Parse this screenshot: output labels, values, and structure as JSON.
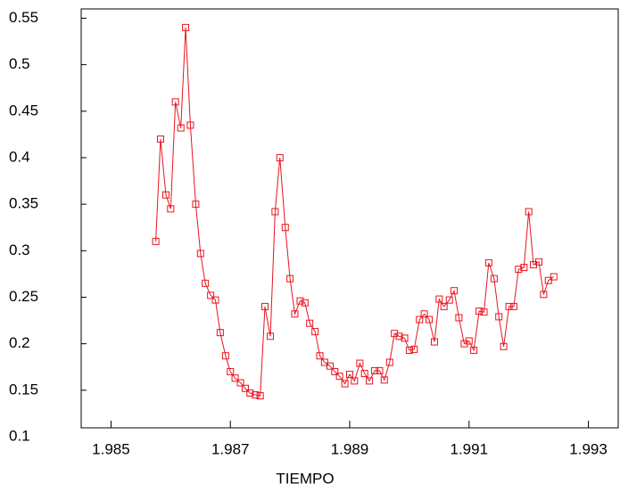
{
  "chart_data": {
    "type": "line",
    "x_label": "TIEMPO",
    "x": [
      1.98575,
      1.98583,
      1.98592,
      1.986,
      1.98608,
      1.98617,
      1.98625,
      1.98633,
      1.98642,
      1.9865,
      1.98658,
      1.98667,
      1.98675,
      1.98683,
      1.98692,
      1.987,
      1.98708,
      1.98717,
      1.98725,
      1.98733,
      1.98742,
      1.9875,
      1.98758,
      1.98767,
      1.98775,
      1.98783,
      1.98792,
      1.988,
      1.98808,
      1.98817,
      1.98825,
      1.98833,
      1.98842,
      1.9885,
      1.98858,
      1.98867,
      1.98875,
      1.98883,
      1.98892,
      1.989,
      1.98908,
      1.98917,
      1.98925,
      1.98933,
      1.98942,
      1.9895,
      1.98958,
      1.98967,
      1.98975,
      1.98983,
      1.98992,
      1.99,
      1.99008,
      1.99017,
      1.99025,
      1.99033,
      1.99042,
      1.9905,
      1.99058,
      1.99067,
      1.99075,
      1.99083,
      1.99092,
      1.991,
      1.99108,
      1.99117,
      1.99125,
      1.99133,
      1.99142,
      1.9915,
      1.99158,
      1.99167,
      1.99175,
      1.99183,
      1.99192,
      1.992,
      1.99208,
      1.99217,
      1.99225,
      1.99233,
      1.99242
    ],
    "series": [
      {
        "color": "#e8141e",
        "values": [
          0.31,
          0.42,
          0.36,
          0.345,
          0.46,
          0.432,
          0.54,
          0.435,
          0.35,
          0.297,
          0.265,
          0.252,
          0.247,
          0.212,
          0.187,
          0.17,
          0.163,
          0.158,
          0.152,
          0.147,
          0.145,
          0.144,
          0.24,
          0.208,
          0.342,
          0.4,
          0.325,
          0.27,
          0.232,
          0.246,
          0.244,
          0.222,
          0.213,
          0.187,
          0.18,
          0.176,
          0.17,
          0.165,
          0.157,
          0.167,
          0.16,
          0.179,
          0.168,
          0.16,
          0.171,
          0.171,
          0.161,
          0.18,
          0.211,
          0.208,
          0.206,
          0.193,
          0.194,
          0.226,
          0.232,
          0.226,
          0.202,
          0.248,
          0.24,
          0.247,
          0.257,
          0.228,
          0.2,
          0.203,
          0.193,
          0.235,
          0.234,
          0.287,
          0.27,
          0.229,
          0.197,
          0.24,
          0.24,
          0.28,
          0.282,
          0.342,
          0.285,
          0.288,
          0.253,
          0.268,
          0.272
        ]
      }
    ],
    "xlim": [
      1.9845,
      1.9935
    ],
    "xticks": [
      1.985,
      1.987,
      1.989,
      1.991,
      1.993
    ],
    "ylim": [
      0.1,
      0.56
    ],
    "yticks": [
      0.1,
      0.15,
      0.2,
      0.25,
      0.3,
      0.35,
      0.4,
      0.45,
      0.5,
      0.55
    ]
  }
}
